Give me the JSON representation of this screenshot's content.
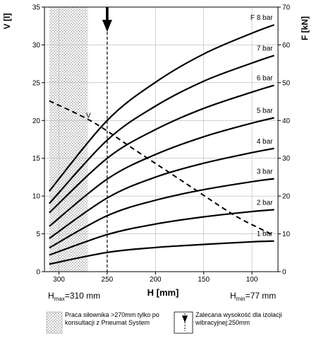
{
  "chart_data": {
    "type": "line",
    "ylabel_left": "V [l]",
    "ylabel_right": "F [kN]",
    "xlabel": "H [mm]",
    "x_ticks": [
      300,
      250,
      200,
      150,
      100
    ],
    "x_range": [
      315,
      73
    ],
    "x_reversed": true,
    "y_left_ticks": [
      0,
      5,
      10,
      15,
      20,
      25,
      30,
      35
    ],
    "y_left_range": [
      0,
      35
    ],
    "y_right_ticks": [
      0,
      10,
      20,
      30,
      40,
      50,
      60,
      70
    ],
    "y_right_range": [
      0,
      70
    ],
    "grid": true,
    "hmax_label": {
      "prefix": "H",
      "sub": "max",
      "suffix": "=310 mm"
    },
    "hmin_label": {
      "prefix": "H",
      "sub": "min",
      "suffix": "=77 mm"
    },
    "hatched_region": {
      "x_from": 310,
      "x_to": 270
    },
    "recommended_height": 250,
    "volume_curve": {
      "name": "V",
      "axis": "left",
      "points": [
        [
          310,
          22.6
        ],
        [
          265,
          19.8
        ],
        [
          220,
          16.0
        ],
        [
          170,
          11.8
        ],
        [
          120,
          7.6
        ],
        [
          90,
          5.6
        ],
        [
          77,
          4.8
        ]
      ]
    },
    "force_series": [
      {
        "name": "1 bar",
        "points": [
          [
            310,
            2.0
          ],
          [
            250,
            5.1
          ],
          [
            200,
            6.4
          ],
          [
            150,
            7.2
          ],
          [
            100,
            7.9
          ],
          [
            77,
            8.1
          ]
        ]
      },
      {
        "name": "2 bar",
        "points": [
          [
            310,
            4.4
          ],
          [
            250,
            9.8
          ],
          [
            200,
            12.6
          ],
          [
            150,
            14.5
          ],
          [
            100,
            15.9
          ],
          [
            77,
            16.4
          ]
        ]
      },
      {
        "name": "3 bar",
        "points": [
          [
            310,
            6.3
          ],
          [
            250,
            14.8
          ],
          [
            200,
            18.9
          ],
          [
            150,
            21.7
          ],
          [
            100,
            23.8
          ],
          [
            77,
            24.6
          ]
        ]
      },
      {
        "name": "4 bar",
        "points": [
          [
            310,
            8.8
          ],
          [
            250,
            19.5
          ],
          [
            200,
            25.0
          ],
          [
            150,
            28.7
          ],
          [
            100,
            31.5
          ],
          [
            77,
            32.6
          ]
        ]
      },
      {
        "name": "5 bar",
        "points": [
          [
            310,
            12.0
          ],
          [
            250,
            24.5
          ],
          [
            200,
            31.0
          ],
          [
            150,
            35.7
          ],
          [
            100,
            39.3
          ],
          [
            77,
            40.7
          ]
        ]
      },
      {
        "name": "6 bar",
        "points": [
          [
            310,
            15.6
          ],
          [
            250,
            30.0
          ],
          [
            200,
            37.6
          ],
          [
            150,
            43.2
          ],
          [
            100,
            47.5
          ],
          [
            77,
            49.3
          ]
        ]
      },
      {
        "name": "7 bar",
        "points": [
          [
            310,
            18.0
          ],
          [
            250,
            34.8
          ],
          [
            200,
            43.8
          ],
          [
            150,
            50.4
          ],
          [
            100,
            55.2
          ],
          [
            77,
            57.2
          ]
        ]
      },
      {
        "name": "8 bar",
        "prefix": "F",
        "points": [
          [
            310,
            21.3
          ],
          [
            250,
            40.0
          ],
          [
            200,
            50.1
          ],
          [
            150,
            57.6
          ],
          [
            100,
            63.1
          ],
          [
            77,
            65.3
          ]
        ]
      }
    ],
    "point_label": "V"
  },
  "legend": {
    "hatch_text": "Praca siłownika >270mm tylko po konsultacji z Pneumat System",
    "arrow_text": "Zalecana wysokość dla izolacji wibracyjnej:250mm"
  }
}
